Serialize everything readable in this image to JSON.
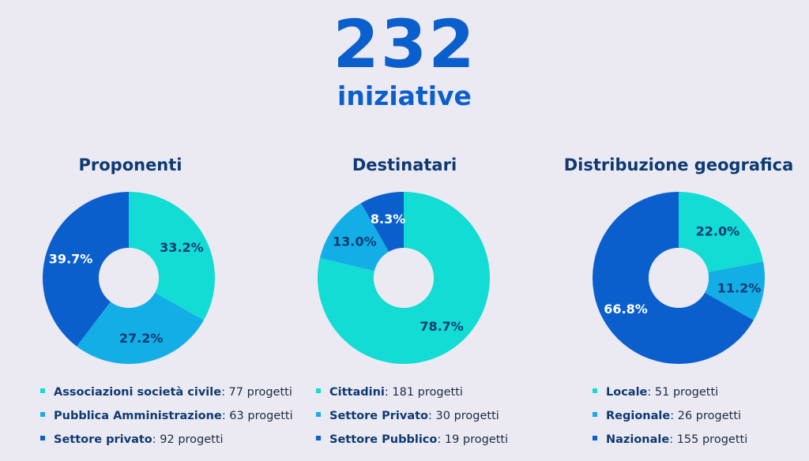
{
  "header": {
    "total": "232",
    "label": "iniziative"
  },
  "colors": {
    "cyan": "#12dcd4",
    "light_blue": "#13aee6",
    "blue": "#0b5fcc",
    "title": "#0e3a73",
    "background": "#ebeaf3"
  },
  "chart_data": [
    {
      "type": "pie",
      "title": "Proponenti",
      "slices": [
        {
          "label": "Associazioni società civile",
          "value": 77,
          "percent": 33.2,
          "percent_label": "33.2%",
          "count_label": ": 77 progetti",
          "color": "#12dcd4"
        },
        {
          "label": "Pubblica Amministrazione",
          "value": 63,
          "percent": 27.2,
          "percent_label": "27.2%",
          "count_label": ": 63 progetti",
          "color": "#13aee6"
        },
        {
          "label": "Settore privato",
          "value": 92,
          "percent": 39.7,
          "percent_label": "39.7%",
          "count_label": ": 92 progetti",
          "color": "#0b5fcc"
        }
      ]
    },
    {
      "type": "pie",
      "title": "Destinatari",
      "slices": [
        {
          "label": "Cittadini",
          "value": 181,
          "percent": 78.7,
          "percent_label": "78.7%",
          "count_label": ": 181 progetti",
          "color": "#12dcd4"
        },
        {
          "label": "Settore Privato",
          "value": 30,
          "percent": 13.0,
          "percent_label": "13.0%",
          "count_label": ": 30 progetti",
          "color": "#13aee6"
        },
        {
          "label": "Settore Pubblico",
          "value": 19,
          "percent": 8.3,
          "percent_label": "8.3%",
          "count_label": ": 19 progetti",
          "color": "#0b5fcc"
        }
      ]
    },
    {
      "type": "pie",
      "title": "Distribuzione geografica",
      "slices": [
        {
          "label": "Locale",
          "value": 51,
          "percent": 22.0,
          "percent_label": "22.0%",
          "count_label": ": 51 progetti",
          "color": "#12dcd4"
        },
        {
          "label": "Regionale",
          "value": 26,
          "percent": 11.2,
          "percent_label": "11.2%",
          "count_label": ": 26 progetti",
          "color": "#13aee6"
        },
        {
          "label": "Nazionale",
          "value": 155,
          "percent": 66.8,
          "percent_label": "66.8%",
          "count_label": ": 155 progetti",
          "color": "#0b5fcc"
        }
      ]
    }
  ]
}
